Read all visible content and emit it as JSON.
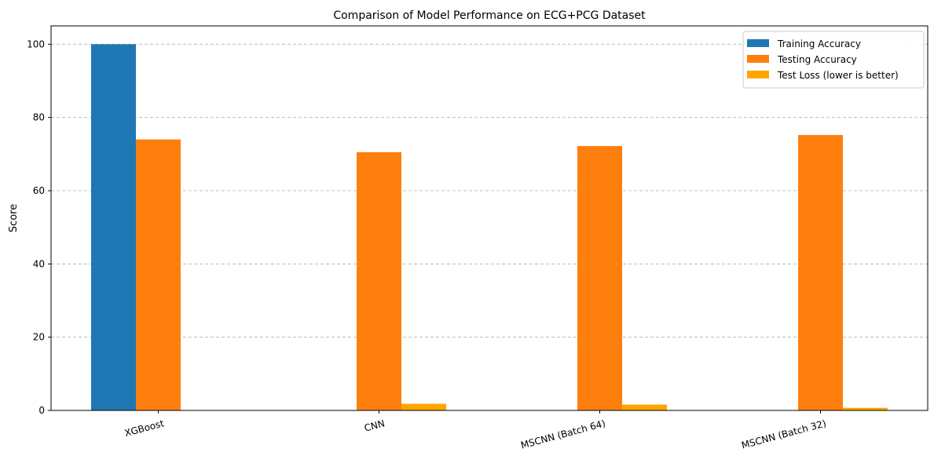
{
  "chart_data": {
    "type": "bar",
    "title": "Comparison of Model Performance on ECG+PCG Dataset",
    "xlabel": "",
    "ylabel": "Score",
    "ylim": [
      0,
      105
    ],
    "yticks": [
      0,
      20,
      40,
      60,
      80,
      100
    ],
    "grid": "y-dashed",
    "legend_position": "top-right",
    "categories": [
      "XGBoost",
      "CNN",
      "MSCNN (Batch 64)",
      "MSCNN (Batch 32)"
    ],
    "series": [
      {
        "name": "Training Accuracy",
        "color": "#1f77b4",
        "values": [
          100,
          0,
          0,
          0
        ]
      },
      {
        "name": "Testing Accuracy",
        "color": "#ff7f0e",
        "values": [
          74.0,
          70.5,
          72.2,
          75.2
        ]
      },
      {
        "name": "Test Loss (lower is better)",
        "color": "#ffa500",
        "values": [
          0,
          1.8,
          1.6,
          0.7
        ]
      }
    ]
  }
}
